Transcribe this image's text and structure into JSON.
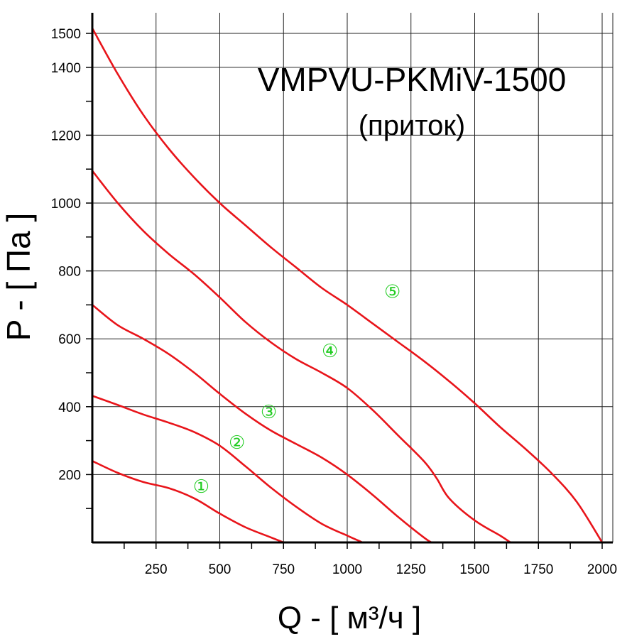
{
  "chart_data": {
    "type": "line",
    "title": "VMPVU-PKMiV-1500",
    "subtitle": "(приток)",
    "xlabel": "Q - [ м³/ч ]",
    "ylabel": "P - [ Па ]",
    "xlim": [
      0,
      2050
    ],
    "ylim": [
      0,
      1600
    ],
    "x_ticks": [
      250,
      500,
      750,
      1000,
      1250,
      1500,
      1750,
      2000
    ],
    "y_ticks": [
      200,
      400,
      600,
      800,
      1000,
      1200,
      1400,
      1500
    ],
    "grid": true,
    "curve_color": "#e8141a",
    "label_color": "#22cc22",
    "series": [
      {
        "name": "①",
        "label_at": [
          430,
          165
        ],
        "points": [
          [
            0,
            240
          ],
          [
            100,
            205
          ],
          [
            200,
            178
          ],
          [
            300,
            160
          ],
          [
            400,
            130
          ],
          [
            500,
            85
          ],
          [
            600,
            45
          ],
          [
            700,
            15
          ],
          [
            750,
            0
          ]
        ]
      },
      {
        "name": "②",
        "label_at": [
          570,
          295
        ],
        "points": [
          [
            0,
            432
          ],
          [
            100,
            405
          ],
          [
            200,
            377
          ],
          [
            300,
            353
          ],
          [
            400,
            325
          ],
          [
            500,
            285
          ],
          [
            600,
            225
          ],
          [
            700,
            162
          ],
          [
            800,
            105
          ],
          [
            900,
            55
          ],
          [
            1000,
            20
          ],
          [
            1060,
            0
          ]
        ]
      },
      {
        "name": "③",
        "label_at": [
          695,
          385
        ],
        "points": [
          [
            0,
            700
          ],
          [
            100,
            640
          ],
          [
            200,
            600
          ],
          [
            300,
            555
          ],
          [
            400,
            500
          ],
          [
            500,
            438
          ],
          [
            600,
            380
          ],
          [
            700,
            330
          ],
          [
            800,
            290
          ],
          [
            900,
            250
          ],
          [
            1000,
            200
          ],
          [
            1100,
            140
          ],
          [
            1200,
            75
          ],
          [
            1300,
            15
          ],
          [
            1330,
            0
          ]
        ]
      },
      {
        "name": "④",
        "label_at": [
          935,
          565
        ],
        "points": [
          [
            0,
            1095
          ],
          [
            100,
            1000
          ],
          [
            200,
            918
          ],
          [
            300,
            850
          ],
          [
            400,
            790
          ],
          [
            500,
            722
          ],
          [
            600,
            650
          ],
          [
            700,
            590
          ],
          [
            800,
            540
          ],
          [
            900,
            500
          ],
          [
            1000,
            455
          ],
          [
            1100,
            390
          ],
          [
            1200,
            315
          ],
          [
            1300,
            240
          ],
          [
            1350,
            190
          ],
          [
            1400,
            130
          ],
          [
            1500,
            65
          ],
          [
            1600,
            20
          ],
          [
            1640,
            0
          ]
        ]
      },
      {
        "name": "⑤",
        "label_at": [
          1180,
          740
        ],
        "points": [
          [
            0,
            1515
          ],
          [
            100,
            1380
          ],
          [
            200,
            1260
          ],
          [
            300,
            1160
          ],
          [
            400,
            1075
          ],
          [
            500,
            1000
          ],
          [
            600,
            935
          ],
          [
            700,
            870
          ],
          [
            800,
            810
          ],
          [
            900,
            750
          ],
          [
            1000,
            700
          ],
          [
            1100,
            645
          ],
          [
            1200,
            590
          ],
          [
            1300,
            535
          ],
          [
            1400,
            475
          ],
          [
            1500,
            410
          ],
          [
            1600,
            340
          ],
          [
            1700,
            275
          ],
          [
            1800,
            205
          ],
          [
            1900,
            120
          ],
          [
            2000,
            0
          ]
        ]
      }
    ]
  }
}
